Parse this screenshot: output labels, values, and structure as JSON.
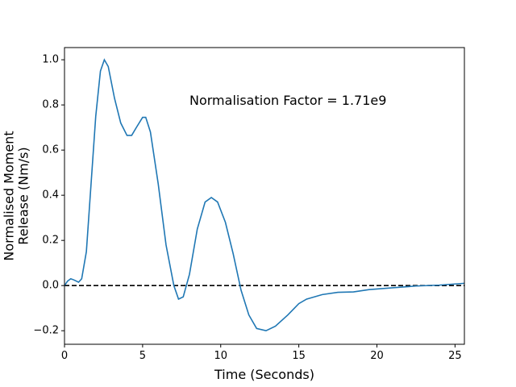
{
  "chart_data": {
    "type": "line",
    "xlabel": "Time (Seconds)",
    "ylabel": [
      "Normalised Moment",
      "Release (Nm/s)"
    ],
    "annotation": "Normalisation Factor = 1.71e9",
    "x": [
      0,
      0.2,
      0.4,
      0.6,
      0.9,
      1.1,
      1.4,
      1.7,
      2.0,
      2.3,
      2.55,
      2.8,
      3.2,
      3.6,
      4.0,
      4.3,
      4.6,
      5.0,
      5.2,
      5.5,
      6.0,
      6.5,
      7.0,
      7.3,
      7.6,
      8.0,
      8.5,
      9.0,
      9.4,
      9.8,
      10.3,
      10.8,
      11.3,
      11.8,
      12.3,
      12.9,
      13.5,
      14.3,
      15.0,
      15.5,
      16.5,
      17.5,
      18.5,
      19.5,
      21,
      22.5,
      24,
      25.6
    ],
    "series": [
      {
        "color": "#1f77b4",
        "values": [
          0,
          0.02,
          0.03,
          0.025,
          0.015,
          0.03,
          0.15,
          0.45,
          0.75,
          0.95,
          1.0,
          0.97,
          0.83,
          0.72,
          0.665,
          0.665,
          0.7,
          0.745,
          0.745,
          0.68,
          0.45,
          0.18,
          0.0,
          -0.06,
          -0.05,
          0.05,
          0.25,
          0.37,
          0.39,
          0.37,
          0.28,
          0.14,
          -0.02,
          -0.13,
          -0.19,
          -0.2,
          -0.18,
          -0.13,
          -0.08,
          -0.06,
          -0.04,
          -0.03,
          -0.028,
          -0.018,
          -0.01,
          -0.002,
          0.002,
          0.01
        ]
      }
    ],
    "hline": 0,
    "xlim": [
      0,
      25.6
    ],
    "ylim": [
      -0.26,
      1.054
    ],
    "xticks": [
      0,
      5,
      10,
      15,
      20,
      25
    ],
    "yticks": [
      {
        "value": -0.2,
        "label": "−0.2"
      },
      {
        "value": 0,
        "label": "0.0"
      },
      0.2,
      0.4,
      0.6,
      0.8,
      {
        "value": 1.0,
        "label": "1.0"
      }
    ]
  }
}
